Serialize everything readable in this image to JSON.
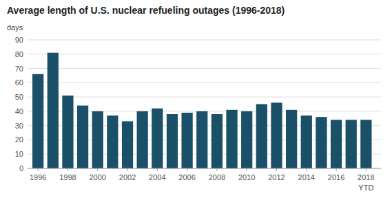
{
  "chart_data": {
    "type": "bar",
    "title": "Average length of U.S. nuclear refueling outages (1996-2018)",
    "y_label": "days",
    "x": [
      1996,
      1997,
      1998,
      1999,
      2000,
      2001,
      2002,
      2003,
      2004,
      2005,
      2006,
      2007,
      2008,
      2009,
      2010,
      2011,
      2012,
      2013,
      2014,
      2015,
      2016,
      2017,
      2018
    ],
    "values": [
      66,
      81,
      51,
      44,
      40,
      37,
      33,
      40,
      42,
      38,
      39,
      40,
      38,
      41,
      40,
      45,
      46,
      41,
      37,
      36,
      34,
      34,
      34
    ],
    "color": "#1a5068",
    "xlim": [
      1995.3,
      2019.0
    ],
    "xticks": [
      1996,
      1998,
      2000,
      2002,
      2004,
      2006,
      2008,
      2010,
      2012,
      2014,
      2016,
      2018
    ],
    "ylim": [
      0,
      90
    ],
    "yticks": [
      0,
      10,
      20,
      30,
      40,
      50,
      60,
      70,
      80,
      90
    ],
    "grid": true,
    "annotations": [
      {
        "text": "YTD",
        "x": 2018
      }
    ]
  }
}
